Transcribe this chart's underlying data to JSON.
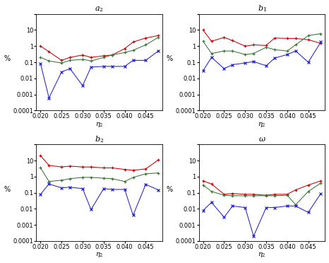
{
  "x": [
    0.02,
    0.022,
    0.025,
    0.027,
    0.03,
    0.032,
    0.035,
    0.037,
    0.04,
    0.042,
    0.045,
    0.048
  ],
  "a2": {
    "red": [
      1.0,
      0.45,
      0.13,
      0.2,
      0.28,
      0.2,
      0.25,
      0.28,
      0.7,
      1.8,
      3.2,
      4.5
    ],
    "green": [
      0.2,
      0.12,
      0.09,
      0.13,
      0.15,
      0.12,
      0.2,
      0.28,
      0.4,
      0.55,
      1.2,
      3.5
    ],
    "blue": [
      0.08,
      0.0006,
      0.025,
      0.04,
      0.0035,
      0.05,
      0.055,
      0.055,
      0.055,
      0.13,
      0.13,
      0.5
    ]
  },
  "b1": {
    "red": [
      10.0,
      2.0,
      3.5,
      2.2,
      1.0,
      1.2,
      1.1,
      3.2,
      3.0,
      3.0,
      2.5,
      1.5
    ],
    "green": [
      2.0,
      0.35,
      0.5,
      0.5,
      0.3,
      0.35,
      0.85,
      0.6,
      0.5,
      1.2,
      4.5,
      6.0
    ],
    "blue": [
      0.03,
      0.2,
      0.04,
      0.07,
      0.09,
      0.11,
      0.06,
      0.18,
      0.3,
      0.5,
      0.1,
      1.8
    ]
  },
  "b2": {
    "red": [
      20.0,
      5.0,
      4.0,
      4.5,
      4.0,
      4.0,
      3.5,
      3.5,
      2.8,
      2.5,
      3.0,
      11.0
    ],
    "green": [
      3.5,
      0.5,
      0.6,
      0.75,
      0.9,
      0.9,
      0.8,
      0.75,
      0.5,
      0.9,
      1.5,
      1.7
    ],
    "blue": [
      0.08,
      0.35,
      0.2,
      0.22,
      0.18,
      0.009,
      0.18,
      0.16,
      0.16,
      0.004,
      0.33,
      0.15
    ]
  },
  "omega": {
    "red": [
      0.55,
      0.35,
      0.08,
      0.09,
      0.08,
      0.08,
      0.07,
      0.08,
      0.08,
      0.15,
      0.3,
      0.55
    ],
    "green": [
      0.3,
      0.12,
      0.07,
      0.065,
      0.065,
      0.065,
      0.065,
      0.065,
      0.07,
      0.018,
      0.12,
      0.4
    ],
    "blue": [
      0.008,
      0.025,
      0.003,
      0.015,
      0.012,
      0.0002,
      0.012,
      0.012,
      0.015,
      0.015,
      0.006,
      0.09
    ]
  },
  "titles": [
    "$a_2$",
    "$b_1$",
    "$b_2$",
    "$\\omega$"
  ],
  "xlabel": "$\\eta_2$",
  "ylabel": "%",
  "ylim": [
    0.0001,
    100
  ],
  "xlim": [
    0.019,
    0.049
  ],
  "xticks": [
    0.02,
    0.025,
    0.03,
    0.035,
    0.04,
    0.045
  ],
  "ytick_labels": {
    "0.0001": "0.0001",
    "0.001": "0.001",
    "0.01": "0.01",
    "0.1": "0.1",
    "1": "1",
    "10": "10"
  },
  "red_color": "#cc0000",
  "green_color": "#337733",
  "blue_color": "#2222cc"
}
